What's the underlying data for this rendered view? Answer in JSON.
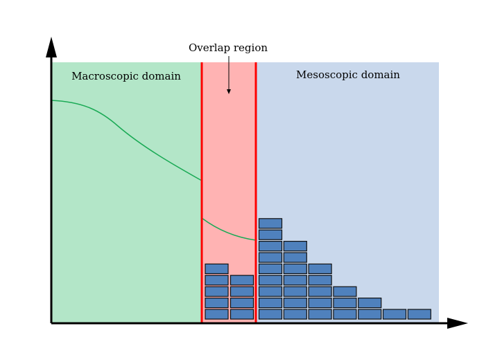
{
  "labels": {
    "macro": "Macroscopic domain",
    "meso": "Mesoscopic domain",
    "overlap": "Overlap region"
  },
  "colors": {
    "macro_bg": "#b3e6c8",
    "overlap_bg": "#ffb3b3",
    "meso_bg": "#c9d8ec",
    "boundary": "#ff0000",
    "curve": "#1aaa55",
    "block_fill": "#4f81bd",
    "block_stroke": "#111111"
  },
  "overlap_stacks": [
    5,
    4
  ],
  "meso_stacks": [
    9,
    7,
    5,
    3,
    2,
    1,
    1
  ]
}
